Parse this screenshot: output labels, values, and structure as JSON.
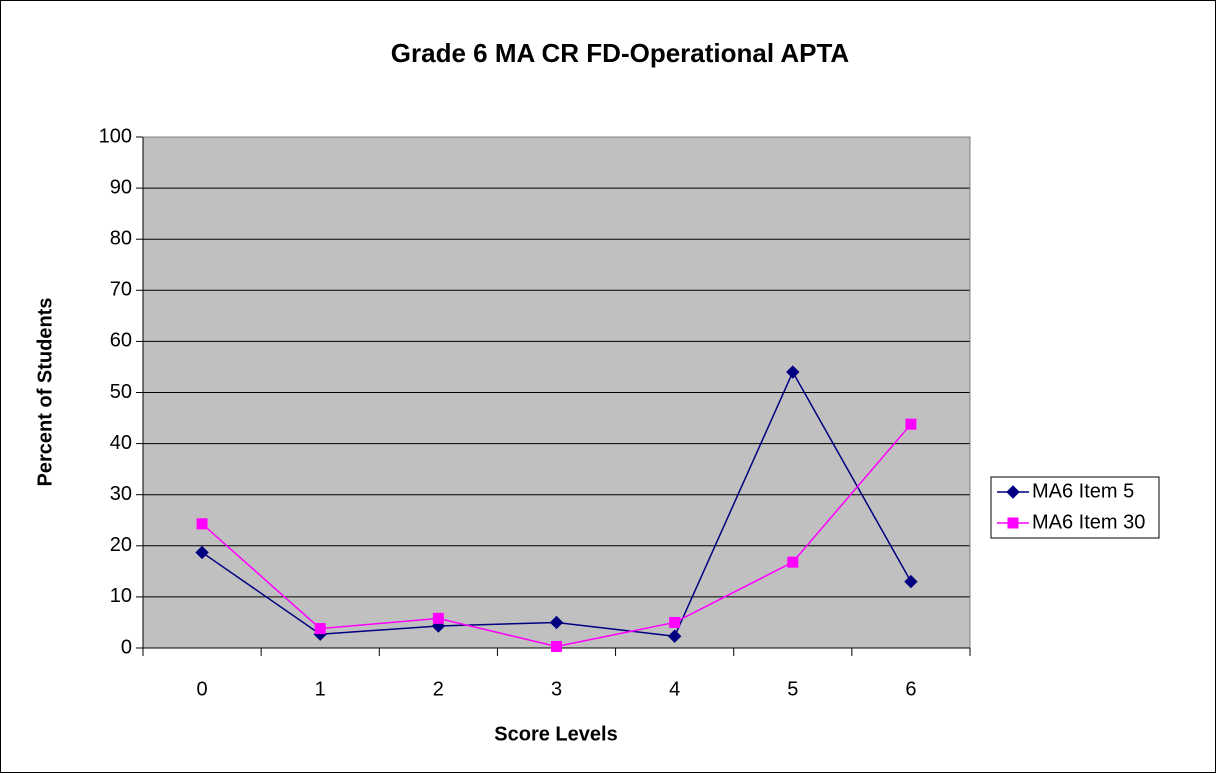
{
  "chart_data": {
    "type": "line",
    "title": "Grade 6 MA CR FD-Operational APTA",
    "x_label": "Score Levels",
    "y_label": "Percent of Students",
    "categories": [
      "0",
      "1",
      "2",
      "3",
      "4",
      "5",
      "6"
    ],
    "series": [
      {
        "name": "MA6 Item 5",
        "color": "#000080",
        "marker": "diamond",
        "values": [
          18.7,
          2.7,
          4.3,
          5,
          2.3,
          54,
          13
        ]
      },
      {
        "name": "MA6 Item 30",
        "color": "#ff00ff",
        "marker": "square",
        "values": [
          24.3,
          3.8,
          5.8,
          0.3,
          5,
          16.8,
          43.8
        ]
      }
    ],
    "ylim": [
      0,
      100
    ],
    "yticks": [
      0,
      10,
      20,
      30,
      40,
      50,
      60,
      70,
      80,
      90,
      100
    ],
    "grid": true,
    "legend": "right",
    "plot_background": "#c0c0c0"
  }
}
